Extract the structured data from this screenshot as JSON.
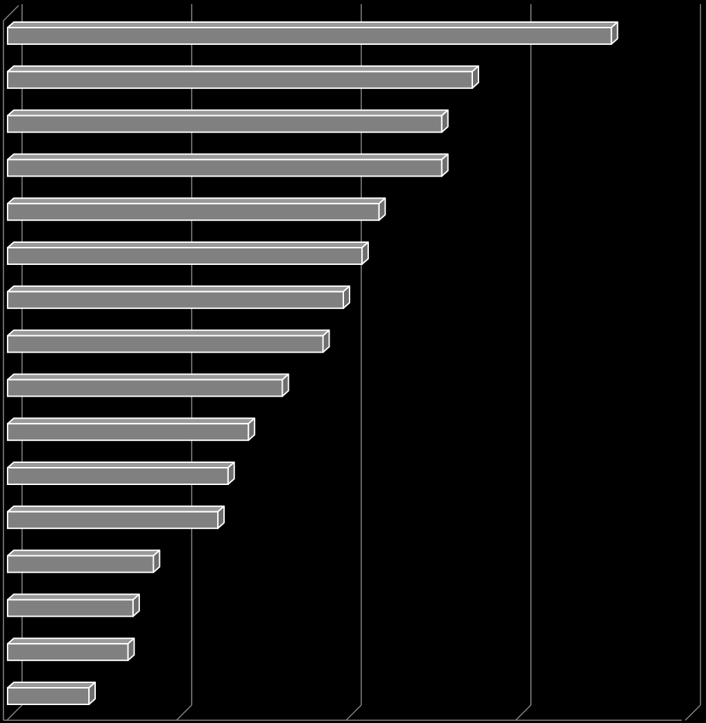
{
  "colors": {
    "background": "#000000",
    "bar_face": "#808080",
    "bar_top": "#9a9a9a",
    "bar_side": "#6e6e6e",
    "bar_stroke": "#ffffff",
    "grid": "#8a8a8a"
  },
  "chart_data": {
    "type": "bar",
    "orientation": "horizontal",
    "style": "3d",
    "grid": true,
    "gridlines_x": [
      0,
      1,
      2,
      3,
      4
    ],
    "xlim": [
      0,
      4
    ],
    "values": [
      3.58,
      2.76,
      2.58,
      2.58,
      2.21,
      2.11,
      2.0,
      1.88,
      1.64,
      1.44,
      1.32,
      1.26,
      0.88,
      0.76,
      0.73,
      0.5
    ]
  }
}
